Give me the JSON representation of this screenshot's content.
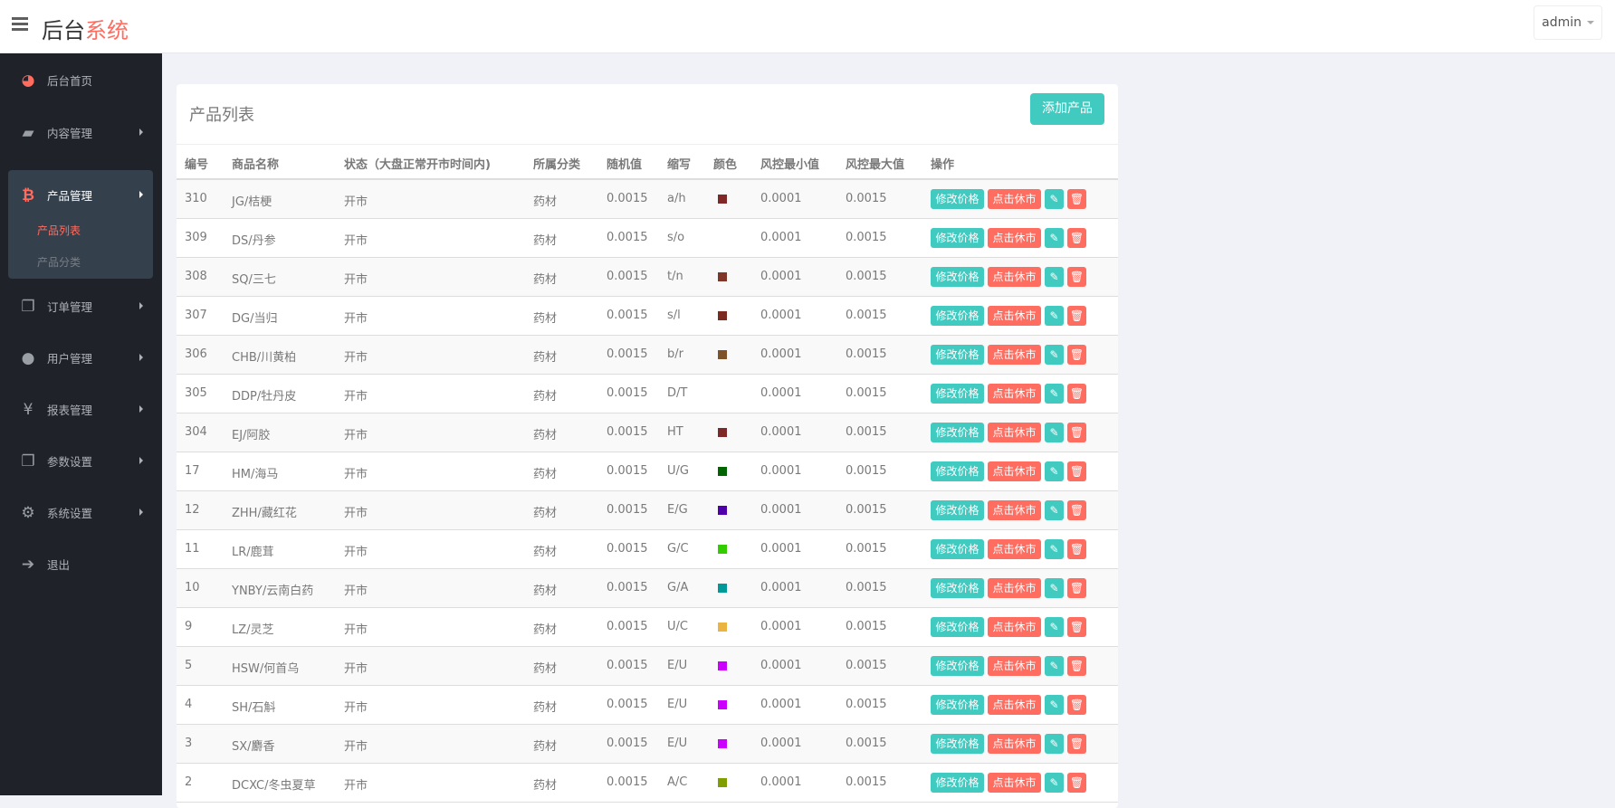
{
  "header": {
    "title_main": "后台",
    "title_accent": "系统",
    "user": "admin"
  },
  "sidebar": {
    "items": [
      {
        "label": "后台首页",
        "icon": "dashboard-icon"
      },
      {
        "label": "内容管理",
        "icon": "book-icon"
      },
      {
        "label": "产品管理",
        "icon": "bitcoin-icon"
      },
      {
        "label": "订单管理",
        "icon": "copy-icon"
      },
      {
        "label": "用户管理",
        "icon": "user-icon"
      },
      {
        "label": "报表管理",
        "icon": "yen-icon"
      },
      {
        "label": "参数设置",
        "icon": "copy-icon"
      },
      {
        "label": "系统设置",
        "icon": "gears-icon"
      },
      {
        "label": "退出",
        "icon": "sign-out-icon"
      }
    ],
    "sub_items": [
      {
        "label": "产品列表",
        "active": true
      },
      {
        "label": "产品分类",
        "active": false
      }
    ]
  },
  "main": {
    "title": "产品列表",
    "add_button": "添加产品",
    "columns": [
      "编号",
      "商品名称",
      "状态（大盘正常开市时间内)",
      "所属分类",
      "随机值",
      "缩写",
      "颜色",
      "风控最小值",
      "风控最大值",
      "操作"
    ],
    "actions": {
      "edit_price": "修改价格",
      "close_market": "点击休市"
    },
    "colors": {
      "teal": "#41cac0",
      "red": "#ff6c60"
    },
    "rows": [
      {
        "id": "310",
        "name": "JG/桔梗",
        "status": "开市",
        "category": "药材",
        "random": "0.0015",
        "abbr": "a/h",
        "color": "#802828",
        "min": "0.0001",
        "max": "0.0015"
      },
      {
        "id": "309",
        "name": "DS/丹参",
        "status": "开市",
        "category": "药材",
        "random": "0.0015",
        "abbr": "s/o",
        "color": "",
        "min": "0.0001",
        "max": "0.0015"
      },
      {
        "id": "308",
        "name": "SQ/三七",
        "status": "开市",
        "category": "药材",
        "random": "0.0015",
        "abbr": "t/n",
        "color": "#7f3528",
        "min": "0.0001",
        "max": "0.0015"
      },
      {
        "id": "307",
        "name": "DG/当归",
        "status": "开市",
        "category": "药材",
        "random": "0.0015",
        "abbr": "s/l",
        "color": "#7a2a1e",
        "min": "0.0001",
        "max": "0.0015"
      },
      {
        "id": "306",
        "name": "CHB/川黄柏",
        "status": "开市",
        "category": "药材",
        "random": "0.0015",
        "abbr": "b/r",
        "color": "#7f5228",
        "min": "0.0001",
        "max": "0.0015"
      },
      {
        "id": "305",
        "name": "DDP/牡丹皮",
        "status": "开市",
        "category": "药材",
        "random": "0.0015",
        "abbr": "D/T",
        "color": "",
        "min": "0.0001",
        "max": "0.0015"
      },
      {
        "id": "304",
        "name": "EJ/阿胶",
        "status": "开市",
        "category": "药材",
        "random": "0.0015",
        "abbr": "HT",
        "color": "#7f2828",
        "min": "0.0001",
        "max": "0.0015"
      },
      {
        "id": "17",
        "name": "HM/海马",
        "status": "开市",
        "category": "药材",
        "random": "0.0015",
        "abbr": "U/G",
        "color": "#006400",
        "min": "0.0001",
        "max": "0.0015"
      },
      {
        "id": "12",
        "name": "ZHH/藏红花",
        "status": "开市",
        "category": "药材",
        "random": "0.0015",
        "abbr": "E/G",
        "color": "#5000aa",
        "min": "0.0001",
        "max": "0.0015"
      },
      {
        "id": "11",
        "name": "LR/鹿茸",
        "status": "开市",
        "category": "药材",
        "random": "0.0015",
        "abbr": "G/C",
        "color": "#33cc00",
        "min": "0.0001",
        "max": "0.0015"
      },
      {
        "id": "10",
        "name": "YNBY/云南白药",
        "status": "开市",
        "category": "药材",
        "random": "0.0015",
        "abbr": "G/A",
        "color": "#009999",
        "min": "0.0001",
        "max": "0.0015"
      },
      {
        "id": "9",
        "name": "LZ/灵芝",
        "status": "开市",
        "category": "药材",
        "random": "0.0015",
        "abbr": "U/C",
        "color": "#ebb340",
        "min": "0.0001",
        "max": "0.0015"
      },
      {
        "id": "5",
        "name": "HSW/何首乌",
        "status": "开市",
        "category": "药材",
        "random": "0.0015",
        "abbr": "E/U",
        "color": "#cc00ff",
        "min": "0.0001",
        "max": "0.0015"
      },
      {
        "id": "4",
        "name": "SH/石斛",
        "status": "开市",
        "category": "药材",
        "random": "0.0015",
        "abbr": "E/U",
        "color": "#cc00ff",
        "min": "0.0001",
        "max": "0.0015"
      },
      {
        "id": "3",
        "name": "SX/麝香",
        "status": "开市",
        "category": "药材",
        "random": "0.0015",
        "abbr": "E/U",
        "color": "#cc00ff",
        "min": "0.0001",
        "max": "0.0015"
      },
      {
        "id": "2",
        "name": "DCXC/冬虫夏草",
        "status": "开市",
        "category": "药材",
        "random": "0.0015",
        "abbr": "A/C",
        "color": "#809e00",
        "min": "0.0001",
        "max": "0.0015"
      }
    ]
  }
}
